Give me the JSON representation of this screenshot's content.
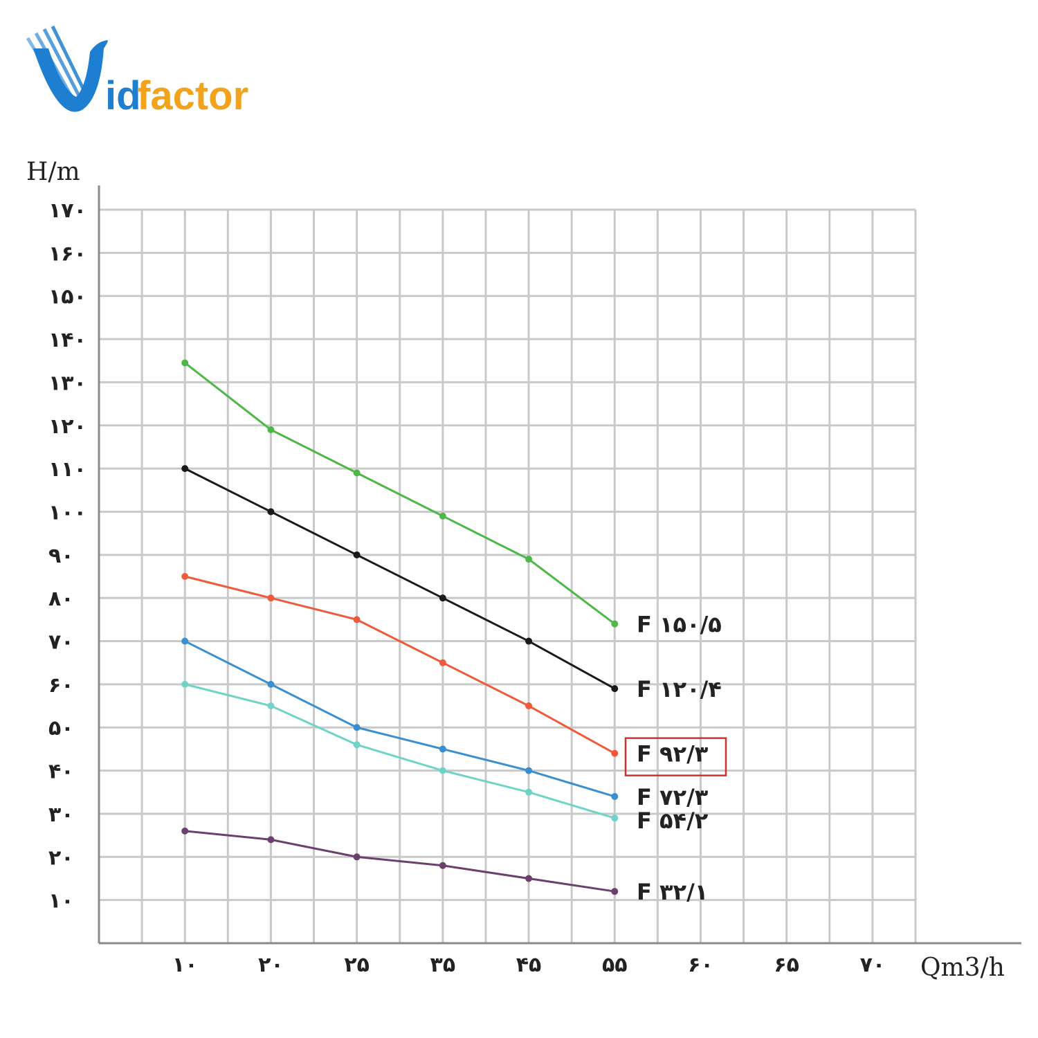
{
  "logo": {
    "text_id": "id",
    "text_factor": "factor",
    "blue": "#1e7fd0",
    "orange": "#f2a21b"
  },
  "chart_data": {
    "type": "line",
    "xlabel": "Qm3/h",
    "ylabel": "H/m",
    "x_tick_labels": [
      "۱۰",
      "۲۰",
      "۲۵",
      "۳۵",
      "۴۵",
      "۵۵",
      "۶۰",
      "۶۵",
      "۷۰"
    ],
    "y_ticks": [
      10,
      20,
      30,
      40,
      50,
      60,
      70,
      80,
      90,
      100,
      110,
      120,
      130,
      140,
      150,
      160,
      170
    ],
    "y_tick_labels": [
      "۱۰",
      "۲۰",
      "۳۰",
      "۴۰",
      "۵۰",
      "۶۰",
      "۷۰",
      "۸۰",
      "۹۰",
      "۱۰۰",
      "۱۱۰",
      "۱۲۰",
      "۱۳۰",
      "۱۴۰",
      "۱۵۰",
      "۱۶۰",
      "۱۷۰"
    ],
    "ylim": [
      0,
      170
    ],
    "grid": true,
    "x": [
      "۱۰",
      "۲۰",
      "۲۵",
      "۳۵",
      "۴۵",
      "۵۵"
    ],
    "series": [
      {
        "name": "F ۱۵۰/۵",
        "color": "#4db848",
        "values": [
          134.5,
          119,
          109,
          99,
          89,
          74
        ]
      },
      {
        "name": "F ۱۲۰/۴",
        "color": "#1a1a1a",
        "values": [
          110,
          100,
          90,
          80,
          70,
          59
        ]
      },
      {
        "name": "F ۹۲/۳",
        "color": "#ef5a3c",
        "values": [
          85,
          80,
          75,
          65,
          55,
          44
        ],
        "highlighted": true
      },
      {
        "name": "F ۷۲/۳",
        "color": "#3a8fd0",
        "values": [
          70,
          60,
          50,
          45,
          40,
          34
        ]
      },
      {
        "name": "F ۵۴/۲",
        "color": "#6fd3c8",
        "values": [
          60,
          55,
          46,
          40,
          35,
          29
        ]
      },
      {
        "name": "F ۳۲/۱",
        "color": "#6b3f6e",
        "values": [
          26,
          24,
          20,
          18,
          15,
          12
        ]
      }
    ],
    "highlight_color": "#d32f2f"
  }
}
